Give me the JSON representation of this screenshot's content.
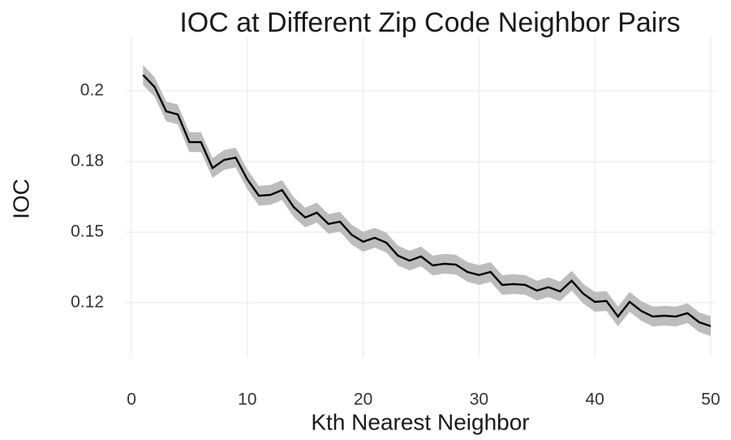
{
  "chart_data": {
    "type": "line",
    "title": "IOC at Different Zip Code Neighbor Pairs",
    "x_label": "Kth Nearest Neighbor",
    "y_label": "IOC",
    "x": [
      1,
      2,
      3,
      4,
      5,
      6,
      7,
      8,
      9,
      10,
      11,
      12,
      13,
      14,
      15,
      16,
      17,
      18,
      19,
      20,
      21,
      22,
      23,
      24,
      25,
      26,
      27,
      28,
      29,
      30,
      31,
      32,
      33,
      34,
      35,
      36,
      37,
      38,
      39,
      40,
      41,
      42,
      43,
      44,
      45,
      46,
      47,
      48,
      49,
      50
    ],
    "values": [
      0.2057,
      0.2014,
      0.1928,
      0.1917,
      0.1819,
      0.1819,
      0.1727,
      0.1756,
      0.1764,
      0.1687,
      0.1629,
      0.1632,
      0.1649,
      0.1589,
      0.1552,
      0.1569,
      0.1529,
      0.1537,
      0.1491,
      0.1466,
      0.148,
      0.1463,
      0.1417,
      0.1399,
      0.1414,
      0.1382,
      0.1388,
      0.1385,
      0.1359,
      0.1348,
      0.1359,
      0.1313,
      0.1316,
      0.1313,
      0.1293,
      0.1305,
      0.129,
      0.1328,
      0.1282,
      0.1253,
      0.1256,
      0.1201,
      0.1253,
      0.1221,
      0.1201,
      0.1204,
      0.1201,
      0.1213,
      0.1181,
      0.1167
    ],
    "lower": [
      0.2022,
      0.1979,
      0.1893,
      0.1882,
      0.1784,
      0.1784,
      0.1692,
      0.1721,
      0.1729,
      0.1652,
      0.1594,
      0.1597,
      0.1614,
      0.1554,
      0.1517,
      0.1534,
      0.1494,
      0.1502,
      0.1456,
      0.1431,
      0.1445,
      0.1428,
      0.1382,
      0.1364,
      0.1379,
      0.1347,
      0.1353,
      0.135,
      0.1324,
      0.1313,
      0.1324,
      0.1278,
      0.1281,
      0.1278,
      0.1258,
      0.127,
      0.1255,
      0.1293,
      0.1247,
      0.1218,
      0.1221,
      0.1166,
      0.1218,
      0.1186,
      0.1166,
      0.1169,
      0.1166,
      0.1178,
      0.1146,
      0.1132
    ],
    "upper": [
      0.2092,
      0.2049,
      0.1963,
      0.1952,
      0.1854,
      0.1854,
      0.1762,
      0.1791,
      0.1799,
      0.1722,
      0.1664,
      0.1667,
      0.1684,
      0.1624,
      0.1587,
      0.1604,
      0.1564,
      0.1572,
      0.1526,
      0.1501,
      0.1515,
      0.1498,
      0.1452,
      0.1434,
      0.1449,
      0.1417,
      0.1423,
      0.142,
      0.1394,
      0.1383,
      0.1394,
      0.1348,
      0.1351,
      0.1348,
      0.1328,
      0.134,
      0.1325,
      0.1363,
      0.1317,
      0.1288,
      0.1291,
      0.1236,
      0.1288,
      0.1256,
      0.1236,
      0.1239,
      0.1236,
      0.1248,
      0.1216,
      0.1202
    ],
    "color": "#000000",
    "band_color": "#bdbdbd",
    "xlim": [
      -0.5,
      50.5
    ],
    "xticks": [
      0,
      10,
      20,
      30,
      40,
      50
    ],
    "ylim": [
      0.1057,
      0.2193
    ],
    "yticks": [
      0.2,
      {
        "value": 0.175,
        "label": "0.18"
      },
      0.15,
      {
        "value": 0.125,
        "label": "0.12"
      }
    ],
    "grid": true
  }
}
